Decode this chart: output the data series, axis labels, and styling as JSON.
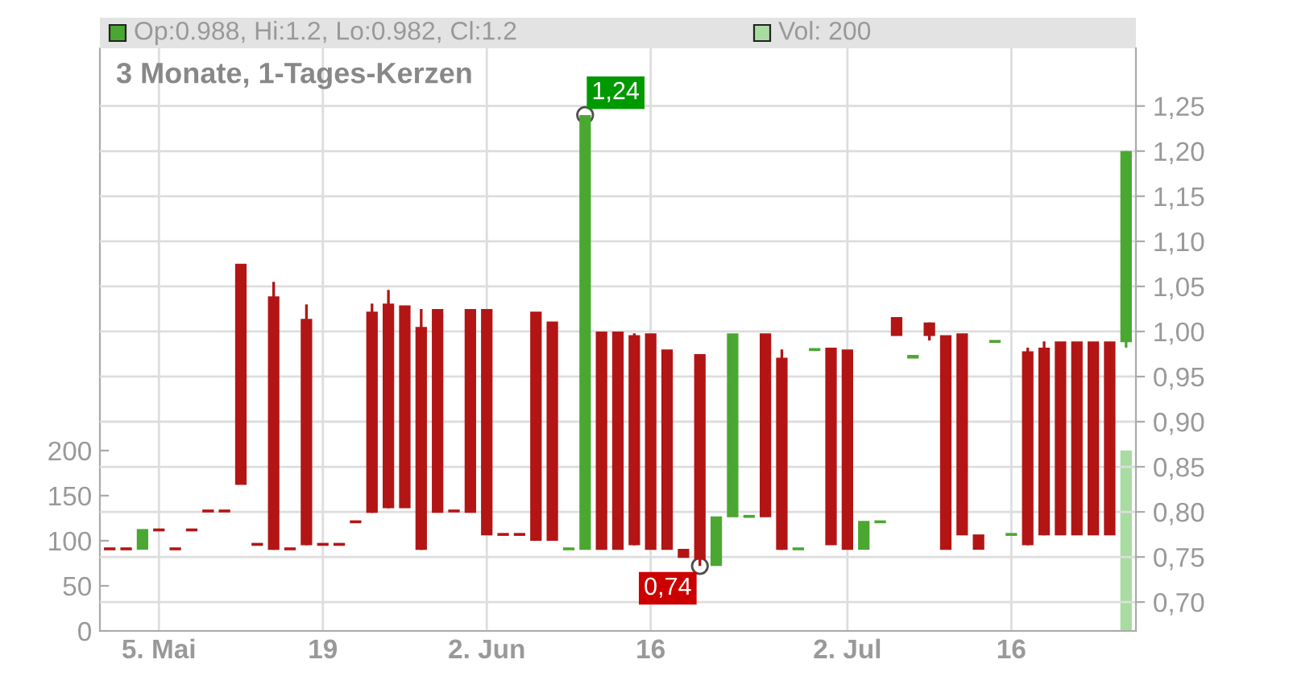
{
  "chart_data": {
    "type": "candlestick",
    "title": "3 Monate, 1-Tages-Kerzen",
    "categories": [
      null,
      null,
      null,
      "5. Mai",
      null,
      null,
      null,
      null,
      null,
      null,
      null,
      null,
      null,
      "19",
      null,
      null,
      null,
      null,
      null,
      null,
      null,
      null,
      null,
      "2. Jun",
      null,
      null,
      null,
      null,
      null,
      null,
      null,
      null,
      null,
      "16",
      null,
      null,
      null,
      null,
      null,
      null,
      null,
      null,
      null,
      null,
      null,
      "2. Jul",
      null,
      null,
      null,
      null,
      null,
      null,
      null,
      null,
      null,
      "16",
      null,
      null,
      null,
      null,
      null,
      null,
      null
    ],
    "ohlc": [
      [
        0.759,
        0.759,
        0.759,
        0.759
      ],
      [
        0.759,
        0.759,
        0.759,
        0.759
      ],
      [
        0.758,
        0.781,
        0.758,
        0.781
      ],
      [
        0.78,
        0.78,
        0.78,
        0.78
      ],
      [
        0.759,
        0.759,
        0.759,
        0.759
      ],
      [
        0.78,
        0.78,
        0.78,
        0.78
      ],
      [
        0.801,
        0.801,
        0.801,
        0.801
      ],
      [
        0.801,
        0.801,
        0.801,
        0.801
      ],
      [
        1.075,
        1.075,
        0.83,
        0.83
      ],
      [
        0.764,
        0.764,
        0.764,
        0.764
      ],
      [
        1.039,
        1.055,
        0.758,
        0.758
      ],
      [
        0.759,
        0.759,
        0.759,
        0.759
      ],
      [
        1.014,
        1.03,
        0.763,
        0.763
      ],
      [
        0.764,
        0.764,
        0.764,
        0.764
      ],
      [
        0.764,
        0.764,
        0.764,
        0.764
      ],
      [
        0.789,
        0.789,
        0.789,
        0.789
      ],
      [
        1.022,
        1.031,
        0.799,
        0.799
      ],
      [
        1.031,
        1.046,
        0.804,
        0.804
      ],
      [
        1.029,
        1.029,
        0.804,
        0.804
      ],
      [
        1.005,
        1.025,
        0.758,
        0.758
      ],
      [
        1.025,
        1.025,
        0.799,
        0.799
      ],
      [
        0.801,
        0.801,
        0.801,
        0.801
      ],
      [
        1.025,
        1.025,
        0.799,
        0.799
      ],
      [
        1.025,
        1.025,
        0.774,
        0.774
      ],
      [
        0.775,
        0.775,
        0.775,
        0.775
      ],
      [
        0.775,
        0.775,
        0.775,
        0.775
      ],
      [
        1.022,
        1.022,
        0.768,
        0.768
      ],
      [
        1.011,
        1.011,
        0.768,
        0.768
      ],
      [
        0.759,
        0.759,
        0.759,
        0.759
      ],
      [
        0.758,
        1.24,
        0.758,
        1.24
      ],
      [
        1.0,
        1.0,
        0.758,
        0.758
      ],
      [
        1.0,
        1.0,
        0.758,
        0.758
      ],
      [
        0.996,
        0.998,
        0.763,
        0.763
      ],
      [
        0.998,
        0.998,
        0.758,
        0.758
      ],
      [
        0.98,
        0.98,
        0.758,
        0.758
      ],
      [
        0.759,
        0.759,
        0.749,
        0.749
      ],
      [
        0.975,
        0.975,
        0.74,
        0.747
      ],
      [
        0.74,
        0.795,
        0.74,
        0.795
      ],
      [
        0.794,
        0.998,
        0.794,
        0.998
      ],
      [
        0.795,
        0.795,
        0.795,
        0.795
      ],
      [
        0.998,
        0.998,
        0.794,
        0.794
      ],
      [
        0.971,
        0.98,
        0.758,
        0.758
      ],
      [
        0.759,
        0.759,
        0.759,
        0.759
      ],
      [
        0.98,
        0.98,
        0.98,
        0.98
      ],
      [
        0.982,
        0.982,
        0.763,
        0.763
      ],
      [
        0.98,
        0.98,
        0.758,
        0.758
      ],
      [
        0.758,
        0.79,
        0.758,
        0.79
      ],
      [
        0.789,
        0.789,
        0.789,
        0.789
      ],
      [
        1.016,
        1.016,
        0.995,
        0.995
      ],
      [
        0.97,
        0.974,
        0.97,
        0.974
      ],
      [
        1.01,
        1.01,
        0.99,
        0.995
      ],
      [
        0.996,
        0.996,
        0.758,
        0.758
      ],
      [
        0.998,
        0.998,
        0.774,
        0.774
      ],
      [
        0.775,
        0.775,
        0.758,
        0.758
      ],
      [
        0.989,
        0.989,
        0.989,
        0.989
      ],
      [
        0.775,
        0.775,
        0.775,
        0.775
      ],
      [
        0.978,
        0.982,
        0.763,
        0.763
      ],
      [
        0.982,
        0.989,
        0.774,
        0.774
      ],
      [
        0.989,
        0.989,
        0.774,
        0.774
      ],
      [
        0.989,
        0.989,
        0.774,
        0.774
      ],
      [
        0.989,
        0.989,
        0.774,
        0.774
      ],
      [
        0.989,
        0.989,
        0.774,
        0.774
      ],
      [
        0.988,
        1.2,
        0.982,
        1.2
      ]
    ],
    "colors": [
      "#b31515",
      "#b31515",
      "#4aa832",
      "#b31515",
      "#b31515",
      "#b31515",
      "#b31515",
      "#b31515",
      "#b31515",
      "#b31515",
      "#b31515",
      "#b31515",
      "#b31515",
      "#b31515",
      "#b31515",
      "#b31515",
      "#b31515",
      "#b31515",
      "#b31515",
      "#b31515",
      "#b31515",
      "#b31515",
      "#b31515",
      "#b31515",
      "#b31515",
      "#b31515",
      "#b31515",
      "#b31515",
      "#4aa832",
      "#4aa832",
      "#b31515",
      "#b31515",
      "#b31515",
      "#b31515",
      "#b31515",
      "#b31515",
      "#b31515",
      "#4aa832",
      "#4aa832",
      "#4aa832",
      "#b31515",
      "#b31515",
      "#4aa832",
      "#4aa832",
      "#b31515",
      "#b31515",
      "#4aa832",
      "#4aa832",
      "#b31515",
      "#4aa832",
      "#b31515",
      "#b31515",
      "#b31515",
      "#b31515",
      "#4aa832",
      "#4aa832",
      "#b31515",
      "#b31515",
      "#b31515",
      "#b31515",
      "#b31515",
      "#b31515",
      "#4aa832"
    ],
    "series": [
      {
        "type": "bar",
        "axis": "y2",
        "color": "#a8dca0",
        "values": [
          null,
          null,
          null,
          null,
          null,
          null,
          null,
          null,
          null,
          null,
          null,
          null,
          null,
          null,
          null,
          null,
          null,
          null,
          null,
          null,
          null,
          null,
          null,
          null,
          null,
          null,
          null,
          null,
          null,
          null,
          null,
          null,
          null,
          null,
          null,
          null,
          null,
          null,
          null,
          null,
          null,
          null,
          null,
          null,
          null,
          null,
          null,
          null,
          null,
          null,
          null,
          null,
          null,
          null,
          null,
          null,
          null,
          null,
          null,
          null,
          null,
          null,
          200
        ]
      }
    ],
    "ylim": [
      0.668,
      1.314
    ],
    "yticks": [
      {
        "value": 0.7,
        "label": "0,70"
      },
      {
        "value": 0.75,
        "label": "0,75"
      },
      {
        "value": 0.8,
        "label": "0,80"
      },
      {
        "value": 0.85,
        "label": "0,85"
      },
      {
        "value": 0.9,
        "label": "0,90"
      },
      {
        "value": 0.95,
        "label": "0,95"
      },
      {
        "value": 1.0,
        "label": "1,00"
      },
      {
        "value": 1.05,
        "label": "1,05"
      },
      {
        "value": 1.1,
        "label": "1,10"
      },
      {
        "value": 1.15,
        "label": "1,15"
      },
      {
        "value": 1.2,
        "label": "1,20"
      },
      {
        "value": 1.25,
        "label": "1,25"
      }
    ],
    "y2lim": [
      0,
      646
    ],
    "y2ticks": [
      0,
      50,
      100,
      150,
      200
    ],
    "grid": true,
    "annotations": [
      "Op:0.988, Hi:1.2, Lo:0.982, Cl:1.2",
      "Vol: 200",
      "1,24",
      "0,74"
    ]
  }
}
